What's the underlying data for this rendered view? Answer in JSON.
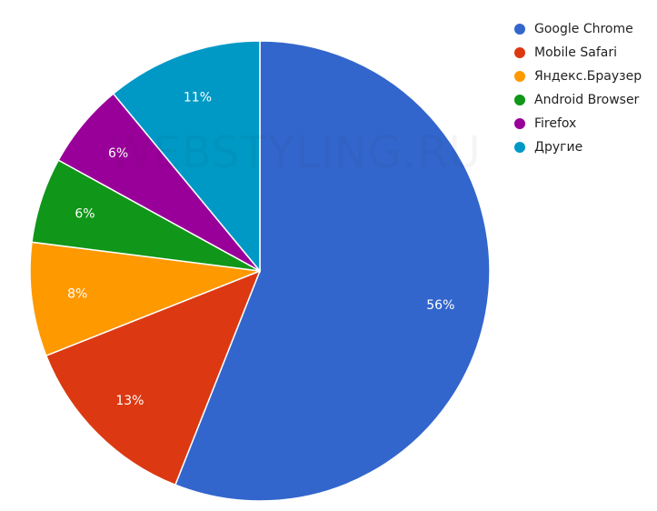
{
  "chart_data": {
    "type": "pie",
    "title": "",
    "legend_position": "right",
    "slices": [
      {
        "label": "Google Chrome",
        "value": 56,
        "color": "#3366CC",
        "display": "56%"
      },
      {
        "label": "Mobile Safari",
        "value": 13,
        "color": "#DC3912",
        "display": "13%"
      },
      {
        "label": "Яндекс.Браузер",
        "value": 8,
        "color": "#FF9900",
        "display": "8%"
      },
      {
        "label": "Android Browser",
        "value": 6,
        "color": "#109618",
        "display": "6%"
      },
      {
        "label": "Firefox",
        "value": 6,
        "color": "#990099",
        "display": "6%"
      },
      {
        "label": "Другие",
        "value": 11,
        "color": "#0099C6",
        "display": "11%"
      }
    ],
    "start_angle_deg": 0,
    "direction": "clockwise"
  },
  "watermark": {
    "text": "WEBSTYLING.RU"
  }
}
